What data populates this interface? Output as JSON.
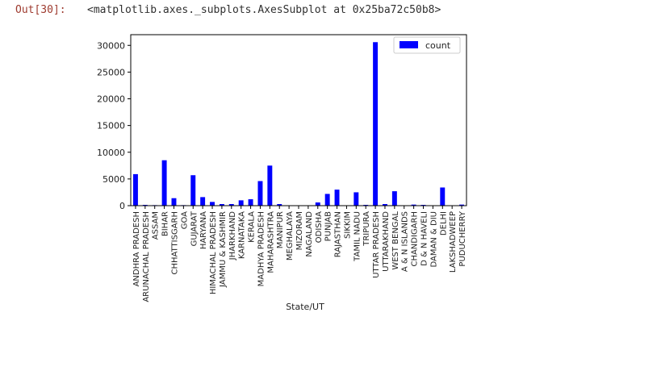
{
  "cell": {
    "prompt": "Out[30]:",
    "output_text": "<matplotlib.axes._subplots.AxesSubplot at 0x25ba72c50b8>"
  },
  "chart_data": {
    "type": "bar",
    "xlabel": "State/UT",
    "ylabel": "",
    "ylim": [
      0,
      32000
    ],
    "yticks": [
      0,
      5000,
      10000,
      15000,
      20000,
      25000,
      30000
    ],
    "ytick_labels": [
      "0",
      "5000",
      "10000",
      "15000",
      "20000",
      "25000",
      "30000"
    ],
    "legend": {
      "position": "upper right",
      "labels": [
        "count"
      ]
    },
    "bar_color": "#0000ff",
    "categories": [
      "ANDHRA PRADESH",
      "ARUNACHAL PRADESH",
      "ASSAM",
      "BIHAR",
      "CHHATTISGARH",
      "GOA",
      "GUJARAT",
      "HARYANA",
      "HIMACHAL PRADESH",
      "JAMMU & KASHMIR",
      "JHARKHAND",
      "KARNATAKA",
      "KERALA",
      "MADHYA PRADESH",
      "MAHARASHTRA",
      "MANIPUR",
      "MEGHALAYA",
      "MIZORAM",
      "NAGALAND",
      "ODISHA",
      "PUNJAB",
      "RAJASTHAN",
      "SIKKIM",
      "TAMIL NADU",
      "TRIPURA",
      "UTTAR PRADESH",
      "UTTARAKHAND",
      "WEST BENGAL",
      "A & N ISLANDS",
      "CHANDIGARH",
      "D & N HAVELI",
      "DAMAN & DIU",
      "DELHI",
      "LAKSHADWEEP",
      "PUDUCHERRY"
    ],
    "series": [
      {
        "name": "count",
        "values": [
          5900,
          150,
          100,
          8500,
          1400,
          100,
          5700,
          1600,
          700,
          300,
          300,
          1000,
          1200,
          4600,
          7500,
          300,
          50,
          50,
          50,
          600,
          2200,
          3000,
          50,
          2500,
          150,
          30600,
          300,
          2700,
          50,
          200,
          150,
          50,
          3400,
          20,
          200
        ]
      }
    ]
  }
}
